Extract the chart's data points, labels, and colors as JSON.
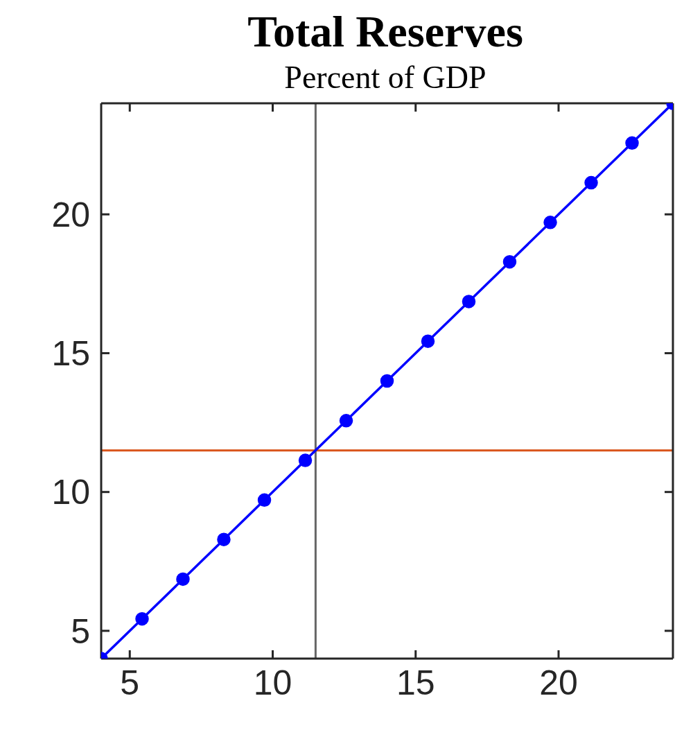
{
  "chart_data": {
    "type": "line",
    "title": "Total Reserves",
    "subtitle": "Percent of GDP",
    "x": [
      4,
      5.43,
      6.86,
      8.29,
      9.71,
      11.14,
      12.57,
      14,
      15.43,
      16.86,
      18.29,
      19.71,
      21.14,
      22.57,
      24
    ],
    "series": [
      {
        "color": "#0000ff",
        "values": [
          4,
          5.43,
          6.86,
          8.29,
          9.71,
          11.14,
          12.57,
          14,
          15.43,
          16.86,
          18.29,
          19.71,
          21.14,
          22.57,
          24
        ]
      }
    ],
    "xlim": [
      4,
      24
    ],
    "ylim": [
      4,
      24
    ],
    "xticks": [
      5,
      10,
      15,
      20
    ],
    "yticks": [
      5,
      10,
      15,
      20
    ],
    "ref_lines": [
      {
        "axis": "x",
        "value": 11.5,
        "color": "#666666"
      },
      {
        "axis": "y",
        "value": 11.5,
        "color": "#d95319"
      }
    ],
    "marker": "circle",
    "line_style": "solid"
  }
}
